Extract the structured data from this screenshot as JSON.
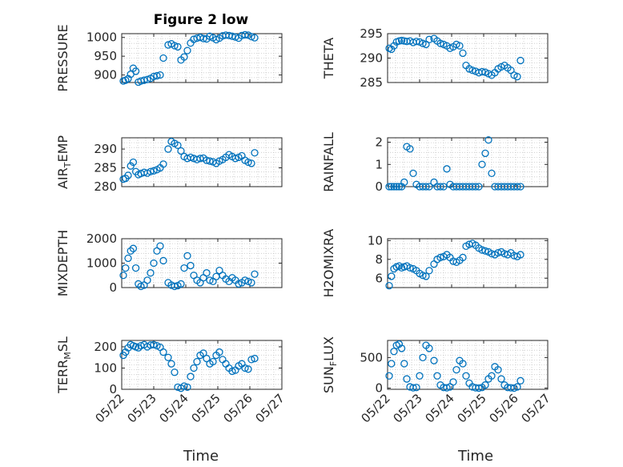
{
  "figure": {
    "title": "Figure 2 low",
    "marker_color": "#0072BD",
    "axis_color": "#262626",
    "grid": "minor-dotted"
  },
  "chart_data": [
    {
      "type": "scatter",
      "ylabel": "PRESSURE",
      "ylabel_parts": [
        {
          "t": "PRESSURE"
        }
      ],
      "xlim": [
        0,
        5
      ],
      "ylim": [
        880,
        1010
      ],
      "yticks": [
        900,
        950,
        1000
      ],
      "ytick_labels": [
        "900",
        "950",
        "1000"
      ],
      "x": [
        0.05,
        0.12,
        0.2,
        0.28,
        0.36,
        0.44,
        0.52,
        0.6,
        0.7,
        0.8,
        0.9,
        1.0,
        1.1,
        1.2,
        1.3,
        1.45,
        1.55,
        1.65,
        1.75,
        1.85,
        1.95,
        2.05,
        2.15,
        2.25,
        2.35,
        2.45,
        2.55,
        2.65,
        2.75,
        2.85,
        2.95,
        3.05,
        3.15,
        3.25,
        3.35,
        3.45,
        3.55,
        3.65,
        3.75,
        3.85,
        3.95,
        4.05,
        4.15
      ],
      "y": [
        884,
        886,
        890,
        902,
        918,
        910,
        881,
        884,
        886,
        888,
        891,
        896,
        898,
        900,
        945,
        980,
        983,
        978,
        975,
        940,
        948,
        965,
        985,
        995,
        998,
        1000,
        997,
        996,
        1003,
        999,
        994,
        998,
        1004,
        1006,
        1005,
        1003,
        1001,
        998,
        1005,
        1007,
        1006,
        1002,
        999
      ]
    },
    {
      "type": "scatter",
      "ylabel": "AIR_TEMP",
      "ylabel_parts": [
        {
          "t": "AIR"
        },
        {
          "t": "T",
          "sub": true
        },
        {
          "t": "EMP"
        }
      ],
      "xlim": [
        0,
        5
      ],
      "ylim": [
        280,
        293
      ],
      "yticks": [
        280,
        285,
        290
      ],
      "ytick_labels": [
        "280",
        "285",
        "290"
      ],
      "x": [
        0.05,
        0.12,
        0.2,
        0.28,
        0.36,
        0.44,
        0.52,
        0.6,
        0.7,
        0.8,
        0.9,
        1.0,
        1.1,
        1.2,
        1.3,
        1.45,
        1.55,
        1.65,
        1.75,
        1.85,
        1.95,
        2.05,
        2.15,
        2.25,
        2.35,
        2.45,
        2.55,
        2.65,
        2.75,
        2.85,
        2.95,
        3.05,
        3.15,
        3.25,
        3.35,
        3.45,
        3.55,
        3.65,
        3.75,
        3.85,
        3.95,
        4.05,
        4.15
      ],
      "y": [
        282,
        282.2,
        283,
        285.5,
        286.5,
        284,
        283.2,
        283.5,
        283.8,
        283.6,
        284,
        284.2,
        284.5,
        285,
        286,
        290,
        292,
        291.5,
        291,
        289.5,
        288,
        287.5,
        287.8,
        287.5,
        287.2,
        287.5,
        287.6,
        287,
        286.8,
        286.6,
        286.2,
        286.8,
        287.2,
        287.8,
        288.5,
        288,
        287.5,
        287.8,
        288.2,
        287,
        286.5,
        286.2,
        289
      ]
    },
    {
      "type": "scatter",
      "ylabel": "MIXDEPTH",
      "ylabel_parts": [
        {
          "t": "MIXDEPTH"
        }
      ],
      "xlim": [
        0,
        5
      ],
      "ylim": [
        0,
        2000
      ],
      "yticks": [
        0,
        1000,
        2000
      ],
      "ytick_labels": [
        "0",
        "1000",
        "2000"
      ],
      "x": [
        0.05,
        0.12,
        0.2,
        0.28,
        0.36,
        0.44,
        0.52,
        0.6,
        0.7,
        0.8,
        0.9,
        1.0,
        1.1,
        1.2,
        1.3,
        1.45,
        1.55,
        1.65,
        1.75,
        1.85,
        1.95,
        2.05,
        2.15,
        2.25,
        2.35,
        2.45,
        2.55,
        2.65,
        2.75,
        2.85,
        2.95,
        3.05,
        3.15,
        3.25,
        3.35,
        3.45,
        3.55,
        3.65,
        3.75,
        3.85,
        3.95,
        4.05,
        4.15
      ],
      "y": [
        500,
        800,
        1200,
        1500,
        1600,
        800,
        150,
        50,
        100,
        300,
        600,
        1000,
        1500,
        1700,
        1100,
        200,
        100,
        50,
        80,
        150,
        800,
        1300,
        900,
        500,
        300,
        200,
        400,
        600,
        300,
        250,
        450,
        700,
        500,
        350,
        250,
        400,
        300,
        150,
        200,
        300,
        250,
        200,
        550
      ]
    },
    {
      "type": "scatter",
      "ylabel": "TERR_MSL",
      "ylabel_parts": [
        {
          "t": "TERR"
        },
        {
          "t": "M",
          "sub": true
        },
        {
          "t": "SL"
        }
      ],
      "xlim": [
        0,
        5
      ],
      "ylim": [
        0,
        230
      ],
      "yticks": [
        0,
        100,
        200
      ],
      "ytick_labels": [
        "0",
        "100",
        "200"
      ],
      "x": [
        0.05,
        0.12,
        0.2,
        0.28,
        0.36,
        0.44,
        0.52,
        0.6,
        0.7,
        0.8,
        0.9,
        1.0,
        1.1,
        1.2,
        1.3,
        1.45,
        1.55,
        1.65,
        1.75,
        1.85,
        1.95,
        2.05,
        2.15,
        2.25,
        2.35,
        2.45,
        2.55,
        2.65,
        2.75,
        2.85,
        2.95,
        3.05,
        3.15,
        3.25,
        3.35,
        3.45,
        3.55,
        3.65,
        3.75,
        3.85,
        3.95,
        4.05,
        4.15
      ],
      "y": [
        160,
        175,
        195,
        210,
        205,
        200,
        195,
        205,
        210,
        200,
        208,
        210,
        205,
        198,
        175,
        150,
        120,
        80,
        10,
        5,
        15,
        10,
        60,
        100,
        130,
        160,
        170,
        145,
        120,
        130,
        160,
        175,
        140,
        120,
        100,
        85,
        90,
        110,
        120,
        100,
        95,
        140,
        145
      ]
    },
    {
      "type": "scatter",
      "ylabel": "THETA",
      "ylabel_parts": [
        {
          "t": "THETA"
        }
      ],
      "xlim": [
        0,
        5
      ],
      "ylim": [
        285,
        295
      ],
      "yticks": [
        285,
        290,
        295
      ],
      "ytick_labels": [
        "285",
        "290",
        "295"
      ],
      "x": [
        0.05,
        0.12,
        0.2,
        0.28,
        0.36,
        0.44,
        0.52,
        0.6,
        0.7,
        0.8,
        0.9,
        1.0,
        1.1,
        1.2,
        1.3,
        1.45,
        1.55,
        1.65,
        1.75,
        1.85,
        1.95,
        2.05,
        2.15,
        2.25,
        2.35,
        2.45,
        2.55,
        2.65,
        2.75,
        2.85,
        2.95,
        3.05,
        3.15,
        3.25,
        3.35,
        3.45,
        3.55,
        3.65,
        3.75,
        3.85,
        3.95,
        4.05,
        4.15
      ],
      "y": [
        292,
        291.8,
        292.5,
        293.3,
        293.5,
        293.6,
        293.5,
        293.4,
        293.5,
        293.2,
        293.4,
        293.3,
        293,
        292.8,
        293.8,
        294,
        293.5,
        293,
        292.8,
        292.5,
        292,
        292.3,
        292.8,
        292.5,
        291,
        288.5,
        287.8,
        287.5,
        287.3,
        287,
        287.2,
        287.1,
        286.8,
        286.5,
        287,
        287.8,
        288.2,
        288.5,
        288,
        287.5,
        286.5,
        286.2,
        289.5
      ]
    },
    {
      "type": "scatter",
      "ylabel": "RAINFALL",
      "ylabel_parts": [
        {
          "t": "RAINFALL"
        }
      ],
      "xlim": [
        0,
        5
      ],
      "ylim": [
        0,
        2.2
      ],
      "yticks": [
        0,
        1,
        2
      ],
      "ytick_labels": [
        "0",
        "1",
        "2"
      ],
      "x": [
        0.05,
        0.12,
        0.2,
        0.28,
        0.36,
        0.44,
        0.52,
        0.6,
        0.7,
        0.8,
        0.9,
        1.0,
        1.1,
        1.2,
        1.3,
        1.45,
        1.55,
        1.65,
        1.75,
        1.85,
        1.95,
        2.05,
        2.15,
        2.25,
        2.35,
        2.45,
        2.55,
        2.65,
        2.75,
        2.85,
        2.95,
        3.05,
        3.15,
        3.25,
        3.35,
        3.45,
        3.55,
        3.65,
        3.75,
        3.85,
        3.95,
        4.05,
        4.15
      ],
      "y": [
        0,
        0,
        0,
        0,
        0,
        0,
        0.2,
        1.8,
        1.7,
        0.6,
        0.1,
        0,
        0,
        0,
        0,
        0.2,
        0,
        0,
        0,
        0.8,
        0.1,
        0,
        0,
        0,
        0,
        0,
        0,
        0,
        0,
        0,
        1,
        1.5,
        2.1,
        0.6,
        0,
        0,
        0,
        0,
        0,
        0,
        0,
        0,
        0
      ]
    },
    {
      "type": "scatter",
      "ylabel": "H2OMIXRA",
      "ylabel_parts": [
        {
          "t": "H2OMIXRA"
        }
      ],
      "xlim": [
        0,
        5
      ],
      "ylim": [
        5,
        10.2
      ],
      "yticks": [
        6,
        8,
        10
      ],
      "ytick_labels": [
        "6",
        "8",
        "10"
      ],
      "x": [
        0.05,
        0.12,
        0.2,
        0.28,
        0.36,
        0.44,
        0.52,
        0.6,
        0.7,
        0.8,
        0.9,
        1.0,
        1.1,
        1.2,
        1.3,
        1.45,
        1.55,
        1.65,
        1.75,
        1.85,
        1.95,
        2.05,
        2.15,
        2.25,
        2.35,
        2.45,
        2.55,
        2.65,
        2.75,
        2.85,
        2.95,
        3.05,
        3.15,
        3.25,
        3.35,
        3.45,
        3.55,
        3.65,
        3.75,
        3.85,
        3.95,
        4.05,
        4.15
      ],
      "y": [
        5.2,
        6.2,
        7,
        7.2,
        7.3,
        7.1,
        7.2,
        7.3,
        7.1,
        7,
        6.8,
        6.5,
        6.3,
        6.2,
        6.8,
        7.5,
        8,
        8.2,
        8.3,
        8.5,
        8.2,
        7.8,
        7.7,
        7.9,
        8.2,
        9.4,
        9.6,
        9.7,
        9.5,
        9.2,
        9,
        8.9,
        8.8,
        8.6,
        8.5,
        8.7,
        8.8,
        8.6,
        8.5,
        8.7,
        8.4,
        8.3,
        8.5
      ]
    },
    {
      "type": "scatter",
      "ylabel": "SUN_FLUX",
      "ylabel_parts": [
        {
          "t": "SUN"
        },
        {
          "t": "F",
          "sub": true
        },
        {
          "t": "LUX"
        }
      ],
      "xlim": [
        0,
        5
      ],
      "ylim": [
        -20,
        780
      ],
      "yticks": [
        0,
        500
      ],
      "ytick_labels": [
        "0",
        "500"
      ],
      "x": [
        0.05,
        0.12,
        0.2,
        0.28,
        0.36,
        0.44,
        0.52,
        0.6,
        0.7,
        0.8,
        0.9,
        1.0,
        1.1,
        1.2,
        1.3,
        1.45,
        1.55,
        1.65,
        1.75,
        1.85,
        1.95,
        2.05,
        2.15,
        2.25,
        2.35,
        2.45,
        2.55,
        2.65,
        2.75,
        2.85,
        2.95,
        3.05,
        3.15,
        3.25,
        3.35,
        3.45,
        3.55,
        3.65,
        3.75,
        3.85,
        3.95,
        4.05,
        4.15
      ],
      "y": [
        200,
        400,
        600,
        700,
        720,
        650,
        400,
        150,
        20,
        5,
        10,
        200,
        500,
        700,
        650,
        450,
        200,
        50,
        10,
        5,
        20,
        100,
        300,
        450,
        400,
        200,
        80,
        20,
        5,
        0,
        10,
        50,
        150,
        200,
        350,
        300,
        150,
        50,
        10,
        5,
        0,
        20,
        120
      ]
    }
  ],
  "x_axis": {
    "label": "Time",
    "ticks": [
      0,
      1,
      2,
      3,
      4,
      5
    ],
    "tick_labels": [
      "05/22",
      "05/23",
      "05/24",
      "05/25",
      "05/26",
      "05/27"
    ]
  }
}
